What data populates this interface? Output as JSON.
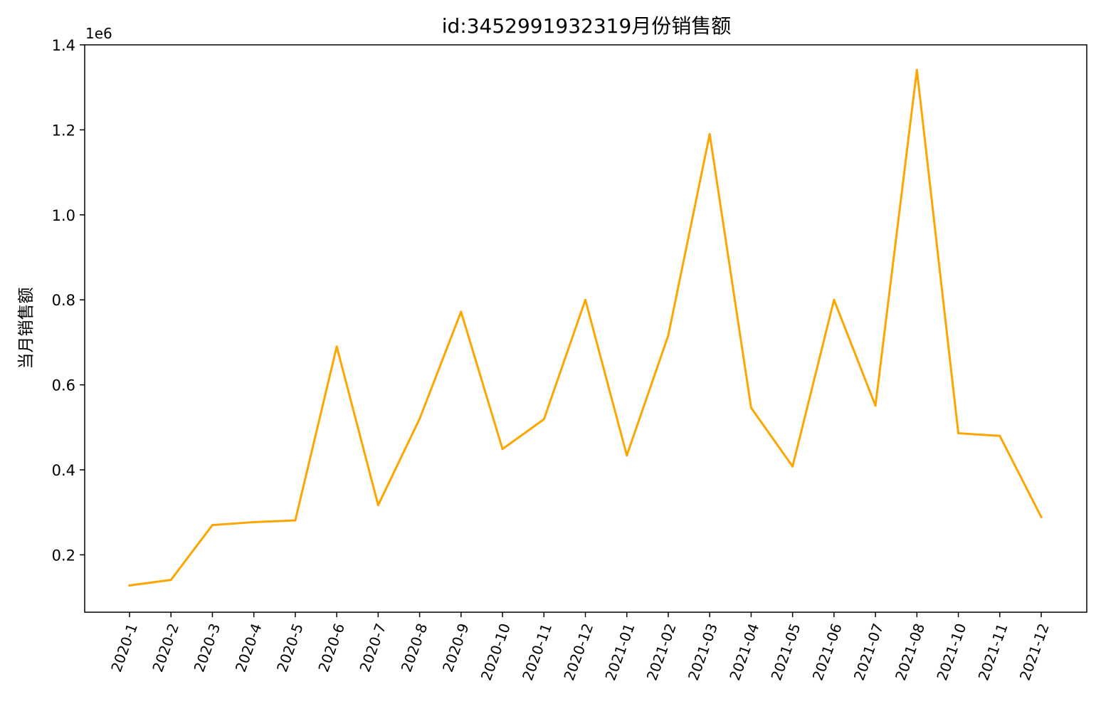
{
  "chart_data": {
    "type": "line",
    "title": "id:3452991932319月份销售额",
    "xlabel": "",
    "ylabel": "当月销售额",
    "y_offset_label": "1e6",
    "line_color": "#FFA500",
    "ylim": [
      0.065,
      1.4
    ],
    "y_ticks": [
      0.2,
      0.4,
      0.6,
      0.8,
      1.0,
      1.2,
      1.4
    ],
    "y_tick_labels": [
      "0.2",
      "0.4",
      "0.6",
      "0.8",
      "1.0",
      "1.2",
      "1.4"
    ],
    "grid": false,
    "legend": "none",
    "categories": [
      "2020-1",
      "2020-2",
      "2020-3",
      "2020-4",
      "2020-5",
      "2020-6",
      "2020-7",
      "2020-8",
      "2020-9",
      "2020-10",
      "2020-11",
      "2020-12",
      "2021-01",
      "2021-02",
      "2021-03",
      "2021-04",
      "2021-05",
      "2021-06",
      "2021-07",
      "2021-08",
      "2021-10",
      "2021-11",
      "2021-12"
    ],
    "values": [
      0.128,
      0.141,
      0.27,
      0.277,
      0.281,
      0.69,
      0.317,
      0.52,
      0.772,
      0.449,
      0.519,
      0.8,
      0.434,
      0.716,
      1.19,
      0.546,
      0.408,
      0.8,
      0.551,
      1.341,
      0.486,
      0.48,
      0.289
    ]
  }
}
